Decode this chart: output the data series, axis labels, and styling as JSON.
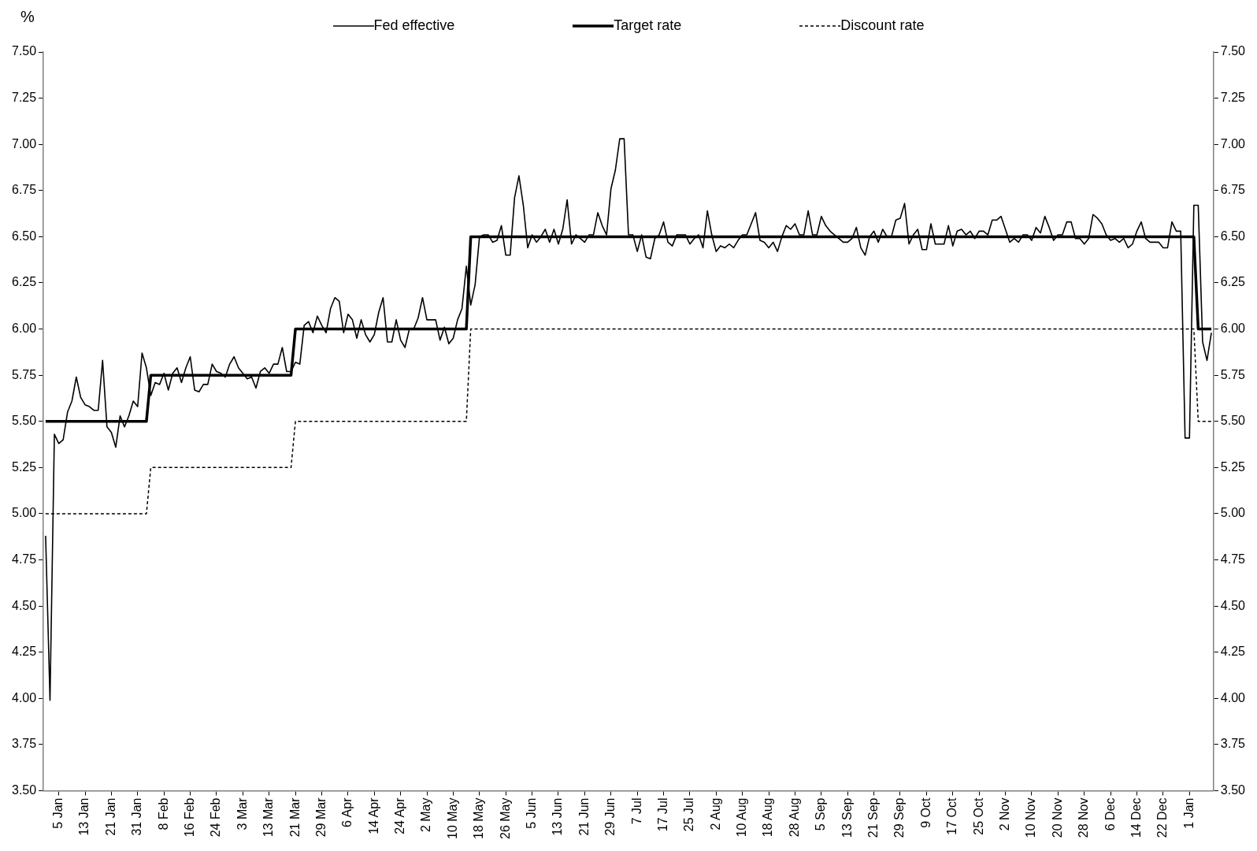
{
  "chart_data": {
    "type": "line",
    "ylabel": "%",
    "legend": "top",
    "grid": false,
    "categories": [
      null,
      null,
      null,
      "5 Jan",
      null,
      null,
      null,
      null,
      null,
      "13 Jan",
      null,
      null,
      null,
      null,
      null,
      "21 Jan",
      null,
      null,
      null,
      null,
      null,
      "31 Jan",
      null,
      null,
      null,
      null,
      null,
      "8 Feb",
      null,
      null,
      null,
      null,
      null,
      "16 Feb",
      null,
      null,
      null,
      null,
      null,
      "24 Feb",
      null,
      null,
      null,
      null,
      null,
      "3 Mar",
      null,
      null,
      null,
      null,
      null,
      "13 Mar",
      null,
      null,
      null,
      null,
      null,
      "21 Mar",
      null,
      null,
      null,
      null,
      null,
      "29 Mar",
      null,
      null,
      null,
      null,
      null,
      "6 Apr",
      null,
      null,
      null,
      null,
      null,
      "14 Apr",
      null,
      null,
      null,
      null,
      null,
      "24 Apr",
      null,
      null,
      null,
      null,
      null,
      "2 May",
      null,
      null,
      null,
      null,
      null,
      "10 May",
      null,
      null,
      null,
      null,
      null,
      "18 May",
      null,
      null,
      null,
      null,
      null,
      "26 May",
      null,
      null,
      null,
      null,
      null,
      "5 Jun",
      null,
      null,
      null,
      null,
      null,
      "13 Jun",
      null,
      null,
      null,
      null,
      null,
      "21 Jun",
      null,
      null,
      null,
      null,
      null,
      "29 Jun",
      null,
      null,
      null,
      null,
      null,
      "7 Jul",
      null,
      null,
      null,
      null,
      null,
      "17 Jul",
      null,
      null,
      null,
      null,
      null,
      "25 Jul",
      null,
      null,
      null,
      null,
      null,
      "2 Aug",
      null,
      null,
      null,
      null,
      null,
      "10 Aug",
      null,
      null,
      null,
      null,
      null,
      "18 Aug",
      null,
      null,
      null,
      null,
      null,
      "28 Aug",
      null,
      null,
      null,
      null,
      null,
      "5 Sep",
      null,
      null,
      null,
      null,
      null,
      "13 Sep",
      null,
      null,
      null,
      null,
      null,
      "21 Sep",
      null,
      null,
      null,
      null,
      null,
      "29 Sep",
      null,
      null,
      null,
      null,
      null,
      "9 Oct",
      null,
      null,
      null,
      null,
      null,
      "17 Oct",
      null,
      null,
      null,
      null,
      null,
      "25 Oct",
      null,
      null,
      null,
      null,
      null,
      "2 Nov",
      null,
      null,
      null,
      null,
      null,
      "10 Nov",
      null,
      null,
      null,
      null,
      null,
      "20 Nov",
      null,
      null,
      null,
      null,
      null,
      "28 Nov",
      null,
      null,
      null,
      null,
      null,
      "6 Dec",
      null,
      null,
      null,
      null,
      null,
      "14 Dec",
      null,
      null,
      null,
      null,
      null,
      "22 Dec",
      null,
      null,
      null,
      null,
      null,
      "1 Jan",
      null,
      null,
      null,
      null,
      null
    ],
    "ylim": [
      3.5,
      7.5
    ],
    "yticks": [
      {
        "value": 3.5,
        "label": "3.50"
      },
      {
        "value": 3.75,
        "label": "3.75"
      },
      {
        "value": 4,
        "label": "4.00"
      },
      {
        "value": 4.25,
        "label": "4.25"
      },
      {
        "value": 4.5,
        "label": "4.50"
      },
      {
        "value": 4.75,
        "label": "4.75"
      },
      {
        "value": 5,
        "label": "5.00"
      },
      {
        "value": 5.25,
        "label": "5.25"
      },
      {
        "value": 5.5,
        "label": "5.50"
      },
      {
        "value": 5.75,
        "label": "5.75"
      },
      {
        "value": 6,
        "label": "6.00"
      },
      {
        "value": 6.25,
        "label": "6.25"
      },
      {
        "value": 6.5,
        "label": "6.50"
      },
      {
        "value": 6.75,
        "label": "6.75"
      },
      {
        "value": 7,
        "label": "7.00"
      },
      {
        "value": 7.25,
        "label": "7.25"
      },
      {
        "value": 7.5,
        "label": "7.50"
      }
    ],
    "y2lim": [
      3.5,
      7.5
    ],
    "y2ticks": [
      {
        "value": 3.5,
        "label": "3.50"
      },
      {
        "value": 3.75,
        "label": "3.75"
      },
      {
        "value": 4,
        "label": "4.00"
      },
      {
        "value": 4.25,
        "label": "4.25"
      },
      {
        "value": 4.5,
        "label": "4.50"
      },
      {
        "value": 4.75,
        "label": "4.75"
      },
      {
        "value": 5,
        "label": "5.00"
      },
      {
        "value": 5.25,
        "label": "5.25"
      },
      {
        "value": 5.5,
        "label": "5.50"
      },
      {
        "value": 5.75,
        "label": "5.75"
      },
      {
        "value": 6,
        "label": "6.00"
      },
      {
        "value": 6.25,
        "label": "6.25"
      },
      {
        "value": 6.5,
        "label": "6.50"
      },
      {
        "value": 6.75,
        "label": "6.75"
      },
      {
        "value": 7,
        "label": "7.00"
      },
      {
        "value": 7.25,
        "label": "7.25"
      },
      {
        "value": 7.5,
        "label": "7.50"
      }
    ],
    "series": [
      {
        "name": "Fed effective",
        "color": "#000000",
        "line_style": "solid",
        "values": [
          4.88,
          3.99,
          5.43,
          5.38,
          5.4,
          5.55,
          5.61,
          5.74,
          5.63,
          5.59,
          5.58,
          5.56,
          5.56,
          5.83,
          5.47,
          5.44,
          5.36,
          5.53,
          5.47,
          5.53,
          5.61,
          5.58,
          5.87,
          5.79,
          5.64,
          5.71,
          5.7,
          5.76,
          5.67,
          5.76,
          5.79,
          5.71,
          5.79,
          5.85,
          5.67,
          5.66,
          5.7,
          5.7,
          5.81,
          5.77,
          5.76,
          5.74,
          5.81,
          5.85,
          5.79,
          5.76,
          5.73,
          5.74,
          5.68,
          5.77,
          5.79,
          5.76,
          5.81,
          5.81,
          5.9,
          5.77,
          5.77,
          5.82,
          5.81,
          6.02,
          6.04,
          5.98,
          6.07,
          6.02,
          5.98,
          6.11,
          6.17,
          6.15,
          5.98,
          6.08,
          6.05,
          5.95,
          6.05,
          5.97,
          5.93,
          5.97,
          6.09,
          6.17,
          5.93,
          5.93,
          6.05,
          5.94,
          5.9,
          6.0,
          6.0,
          6.06,
          6.17,
          6.05,
          6.05,
          6.05,
          5.94,
          6.01,
          5.92,
          5.95,
          6.05,
          6.11,
          6.34,
          6.13,
          6.24,
          6.5,
          6.51,
          6.51,
          6.47,
          6.48,
          6.56,
          6.4,
          6.4,
          6.71,
          6.83,
          6.67,
          6.44,
          6.51,
          6.47,
          6.5,
          6.54,
          6.47,
          6.54,
          6.46,
          6.54,
          6.7,
          6.46,
          6.51,
          6.49,
          6.47,
          6.51,
          6.51,
          6.63,
          6.56,
          6.51,
          6.76,
          6.86,
          7.03,
          7.03,
          6.51,
          6.51,
          6.42,
          6.51,
          6.39,
          6.38,
          6.49,
          6.51,
          6.58,
          6.47,
          6.45,
          6.51,
          6.51,
          6.51,
          6.46,
          6.49,
          6.51,
          6.44,
          6.64,
          6.51,
          6.42,
          6.45,
          6.44,
          6.46,
          6.44,
          6.48,
          6.51,
          6.51,
          6.57,
          6.63,
          6.48,
          6.47,
          6.44,
          6.47,
          6.42,
          6.5,
          6.56,
          6.54,
          6.57,
          6.51,
          6.51,
          6.64,
          6.51,
          6.51,
          6.61,
          6.56,
          6.53,
          6.51,
          6.49,
          6.47,
          6.47,
          6.49,
          6.55,
          6.44,
          6.4,
          6.5,
          6.53,
          6.47,
          6.54,
          6.5,
          6.5,
          6.59,
          6.6,
          6.68,
          6.46,
          6.51,
          6.54,
          6.43,
          6.43,
          6.57,
          6.46,
          6.46,
          6.46,
          6.56,
          6.45,
          6.53,
          6.54,
          6.51,
          6.53,
          6.49,
          6.53,
          6.53,
          6.51,
          6.59,
          6.59,
          6.61,
          6.54,
          6.47,
          6.49,
          6.47,
          6.51,
          6.51,
          6.48,
          6.55,
          6.52,
          6.61,
          6.55,
          6.48,
          6.51,
          6.51,
          6.58,
          6.58,
          6.49,
          6.49,
          6.46,
          6.49,
          6.62,
          6.6,
          6.57,
          6.51,
          6.48,
          6.49,
          6.47,
          6.49,
          6.44,
          6.46,
          6.53,
          6.58,
          6.49,
          6.47,
          6.47,
          6.47,
          6.44,
          6.44,
          6.58,
          6.53,
          6.53,
          5.41,
          5.41,
          6.67,
          6.67,
          5.93,
          5.83,
          5.98
        ]
      },
      {
        "name": "Target rate",
        "color": "#000000",
        "line_style": "solid",
        "values": [
          5.5,
          5.5,
          5.5,
          5.5,
          5.5,
          5.5,
          5.5,
          5.5,
          5.5,
          5.5,
          5.5,
          5.5,
          5.5,
          5.5,
          5.5,
          5.5,
          5.5,
          5.5,
          5.5,
          5.5,
          5.5,
          5.5,
          5.5,
          5.5,
          5.75,
          5.75,
          5.75,
          5.75,
          5.75,
          5.75,
          5.75,
          5.75,
          5.75,
          5.75,
          5.75,
          5.75,
          5.75,
          5.75,
          5.75,
          5.75,
          5.75,
          5.75,
          5.75,
          5.75,
          5.75,
          5.75,
          5.75,
          5.75,
          5.75,
          5.75,
          5.75,
          5.75,
          5.75,
          5.75,
          5.75,
          5.75,
          5.75,
          6.0,
          6.0,
          6.0,
          6.0,
          6.0,
          6.0,
          6.0,
          6.0,
          6.0,
          6.0,
          6.0,
          6.0,
          6.0,
          6.0,
          6.0,
          6.0,
          6.0,
          6.0,
          6.0,
          6.0,
          6.0,
          6.0,
          6.0,
          6.0,
          6.0,
          6.0,
          6.0,
          6.0,
          6.0,
          6.0,
          6.0,
          6.0,
          6.0,
          6.0,
          6.0,
          6.0,
          6.0,
          6.0,
          6.0,
          6.0,
          6.5,
          6.5,
          6.5,
          6.5,
          6.5,
          6.5,
          6.5,
          6.5,
          6.5,
          6.5,
          6.5,
          6.5,
          6.5,
          6.5,
          6.5,
          6.5,
          6.5,
          6.5,
          6.5,
          6.5,
          6.5,
          6.5,
          6.5,
          6.5,
          6.5,
          6.5,
          6.5,
          6.5,
          6.5,
          6.5,
          6.5,
          6.5,
          6.5,
          6.5,
          6.5,
          6.5,
          6.5,
          6.5,
          6.5,
          6.5,
          6.5,
          6.5,
          6.5,
          6.5,
          6.5,
          6.5,
          6.5,
          6.5,
          6.5,
          6.5,
          6.5,
          6.5,
          6.5,
          6.5,
          6.5,
          6.5,
          6.5,
          6.5,
          6.5,
          6.5,
          6.5,
          6.5,
          6.5,
          6.5,
          6.5,
          6.5,
          6.5,
          6.5,
          6.5,
          6.5,
          6.5,
          6.5,
          6.5,
          6.5,
          6.5,
          6.5,
          6.5,
          6.5,
          6.5,
          6.5,
          6.5,
          6.5,
          6.5,
          6.5,
          6.5,
          6.5,
          6.5,
          6.5,
          6.5,
          6.5,
          6.5,
          6.5,
          6.5,
          6.5,
          6.5,
          6.5,
          6.5,
          6.5,
          6.5,
          6.5,
          6.5,
          6.5,
          6.5,
          6.5,
          6.5,
          6.5,
          6.5,
          6.5,
          6.5,
          6.5,
          6.5,
          6.5,
          6.5,
          6.5,
          6.5,
          6.5,
          6.5,
          6.5,
          6.5,
          6.5,
          6.5,
          6.5,
          6.5,
          6.5,
          6.5,
          6.5,
          6.5,
          6.5,
          6.5,
          6.5,
          6.5,
          6.5,
          6.5,
          6.5,
          6.5,
          6.5,
          6.5,
          6.5,
          6.5,
          6.5,
          6.5,
          6.5,
          6.5,
          6.5,
          6.5,
          6.5,
          6.5,
          6.5,
          6.5,
          6.5,
          6.5,
          6.5,
          6.5,
          6.5,
          6.5,
          6.5,
          6.5,
          6.5,
          6.5,
          6.5,
          6.5,
          6.5,
          6.5,
          6.5,
          6.5,
          6.5,
          6.0,
          6.0,
          6.0,
          6.0
        ]
      },
      {
        "name": "Discount rate",
        "color": "#000000",
        "line_style": "dashed",
        "values": [
          5.0,
          5.0,
          5.0,
          5.0,
          5.0,
          5.0,
          5.0,
          5.0,
          5.0,
          5.0,
          5.0,
          5.0,
          5.0,
          5.0,
          5.0,
          5.0,
          5.0,
          5.0,
          5.0,
          5.0,
          5.0,
          5.0,
          5.0,
          5.0,
          5.25,
          5.25,
          5.25,
          5.25,
          5.25,
          5.25,
          5.25,
          5.25,
          5.25,
          5.25,
          5.25,
          5.25,
          5.25,
          5.25,
          5.25,
          5.25,
          5.25,
          5.25,
          5.25,
          5.25,
          5.25,
          5.25,
          5.25,
          5.25,
          5.25,
          5.25,
          5.25,
          5.25,
          5.25,
          5.25,
          5.25,
          5.25,
          5.25,
          5.5,
          5.5,
          5.5,
          5.5,
          5.5,
          5.5,
          5.5,
          5.5,
          5.5,
          5.5,
          5.5,
          5.5,
          5.5,
          5.5,
          5.5,
          5.5,
          5.5,
          5.5,
          5.5,
          5.5,
          5.5,
          5.5,
          5.5,
          5.5,
          5.5,
          5.5,
          5.5,
          5.5,
          5.5,
          5.5,
          5.5,
          5.5,
          5.5,
          5.5,
          5.5,
          5.5,
          5.5,
          5.5,
          5.5,
          5.5,
          6.0,
          6.0,
          6.0,
          6.0,
          6.0,
          6.0,
          6.0,
          6.0,
          6.0,
          6.0,
          6.0,
          6.0,
          6.0,
          6.0,
          6.0,
          6.0,
          6.0,
          6.0,
          6.0,
          6.0,
          6.0,
          6.0,
          6.0,
          6.0,
          6.0,
          6.0,
          6.0,
          6.0,
          6.0,
          6.0,
          6.0,
          6.0,
          6.0,
          6.0,
          6.0,
          6.0,
          6.0,
          6.0,
          6.0,
          6.0,
          6.0,
          6.0,
          6.0,
          6.0,
          6.0,
          6.0,
          6.0,
          6.0,
          6.0,
          6.0,
          6.0,
          6.0,
          6.0,
          6.0,
          6.0,
          6.0,
          6.0,
          6.0,
          6.0,
          6.0,
          6.0,
          6.0,
          6.0,
          6.0,
          6.0,
          6.0,
          6.0,
          6.0,
          6.0,
          6.0,
          6.0,
          6.0,
          6.0,
          6.0,
          6.0,
          6.0,
          6.0,
          6.0,
          6.0,
          6.0,
          6.0,
          6.0,
          6.0,
          6.0,
          6.0,
          6.0,
          6.0,
          6.0,
          6.0,
          6.0,
          6.0,
          6.0,
          6.0,
          6.0,
          6.0,
          6.0,
          6.0,
          6.0,
          6.0,
          6.0,
          6.0,
          6.0,
          6.0,
          6.0,
          6.0,
          6.0,
          6.0,
          6.0,
          6.0,
          6.0,
          6.0,
          6.0,
          6.0,
          6.0,
          6.0,
          6.0,
          6.0,
          6.0,
          6.0,
          6.0,
          6.0,
          6.0,
          6.0,
          6.0,
          6.0,
          6.0,
          6.0,
          6.0,
          6.0,
          6.0,
          6.0,
          6.0,
          6.0,
          6.0,
          6.0,
          6.0,
          6.0,
          6.0,
          6.0,
          6.0,
          6.0,
          6.0,
          6.0,
          6.0,
          6.0,
          6.0,
          6.0,
          6.0,
          6.0,
          6.0,
          6.0,
          6.0,
          6.0,
          6.0,
          6.0,
          6.0,
          6.0,
          6.0,
          6.0,
          6.0,
          6.0,
          6.0,
          6.0,
          6.0,
          6.0,
          6.0,
          5.5,
          5.5,
          5.5,
          5.5
        ]
      }
    ]
  }
}
